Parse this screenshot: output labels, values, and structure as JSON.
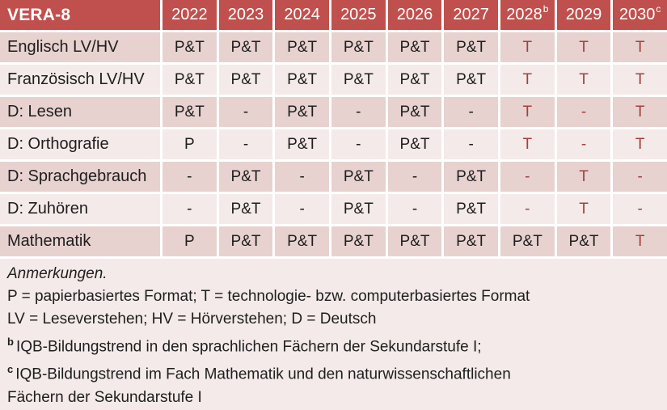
{
  "colors": {
    "header_bg": "#C0504D",
    "header_text": "#FFFFFF",
    "row_dark": "#E7D2D0",
    "row_light": "#F3EAE9",
    "body_text": "#1E1E1E",
    "accent_text": "#A0413E",
    "gap": "#FFFFFF"
  },
  "table": {
    "title": "VERA-8",
    "years": [
      {
        "label": "2022",
        "sup": ""
      },
      {
        "label": "2023",
        "sup": ""
      },
      {
        "label": "2024",
        "sup": ""
      },
      {
        "label": "2025",
        "sup": ""
      },
      {
        "label": "2026",
        "sup": ""
      },
      {
        "label": "2027",
        "sup": ""
      },
      {
        "label": "2028",
        "sup": "b"
      },
      {
        "label": "2029",
        "sup": ""
      },
      {
        "label": "2030",
        "sup": "c"
      }
    ],
    "rows": [
      {
        "label": "Englisch LV/HV",
        "cells": [
          {
            "text": "P&T",
            "red": false
          },
          {
            "text": "P&T",
            "red": false
          },
          {
            "text": "P&T",
            "red": false
          },
          {
            "text": "P&T",
            "red": false
          },
          {
            "text": "P&T",
            "red": false
          },
          {
            "text": "P&T",
            "red": false
          },
          {
            "text": "T",
            "red": true
          },
          {
            "text": "T",
            "red": true
          },
          {
            "text": "T",
            "red": true
          }
        ]
      },
      {
        "label": "Französisch LV/HV",
        "cells": [
          {
            "text": "P&T",
            "red": false
          },
          {
            "text": "P&T",
            "red": false
          },
          {
            "text": "P&T",
            "red": false
          },
          {
            "text": "P&T",
            "red": false
          },
          {
            "text": "P&T",
            "red": false
          },
          {
            "text": "P&T",
            "red": false
          },
          {
            "text": "T",
            "red": true
          },
          {
            "text": "T",
            "red": true
          },
          {
            "text": "T",
            "red": true
          }
        ]
      },
      {
        "label": "D: Lesen",
        "cells": [
          {
            "text": "P&T",
            "red": false
          },
          {
            "text": "-",
            "red": false
          },
          {
            "text": "P&T",
            "red": false
          },
          {
            "text": "-",
            "red": false
          },
          {
            "text": "P&T",
            "red": false
          },
          {
            "text": "-",
            "red": false
          },
          {
            "text": "T",
            "red": true
          },
          {
            "text": "-",
            "red": true
          },
          {
            "text": "T",
            "red": true
          }
        ]
      },
      {
        "label": "D: Orthografie",
        "cells": [
          {
            "text": "P",
            "red": false
          },
          {
            "text": "-",
            "red": false
          },
          {
            "text": "P&T",
            "red": false
          },
          {
            "text": "-",
            "red": false
          },
          {
            "text": "P&T",
            "red": false
          },
          {
            "text": "-",
            "red": false
          },
          {
            "text": "T",
            "red": true
          },
          {
            "text": "-",
            "red": true
          },
          {
            "text": "T",
            "red": true
          }
        ]
      },
      {
        "label": "D: Sprachgebrauch",
        "cells": [
          {
            "text": "-",
            "red": false
          },
          {
            "text": "P&T",
            "red": false
          },
          {
            "text": "-",
            "red": false
          },
          {
            "text": "P&T",
            "red": false
          },
          {
            "text": "-",
            "red": false
          },
          {
            "text": "P&T",
            "red": false
          },
          {
            "text": "-",
            "red": true
          },
          {
            "text": "T",
            "red": true
          },
          {
            "text": "-",
            "red": true
          }
        ]
      },
      {
        "label": "D: Zuhören",
        "cells": [
          {
            "text": "-",
            "red": false
          },
          {
            "text": "P&T",
            "red": false
          },
          {
            "text": "-",
            "red": false
          },
          {
            "text": "P&T",
            "red": false
          },
          {
            "text": "-",
            "red": false
          },
          {
            "text": "P&T",
            "red": false
          },
          {
            "text": "-",
            "red": true
          },
          {
            "text": "T",
            "red": true
          },
          {
            "text": "-",
            "red": true
          }
        ]
      },
      {
        "label": "Mathematik",
        "cells": [
          {
            "text": "P",
            "red": false
          },
          {
            "text": "P&T",
            "red": false
          },
          {
            "text": "P&T",
            "red": false
          },
          {
            "text": "P&T",
            "red": false
          },
          {
            "text": "P&T",
            "red": false
          },
          {
            "text": "P&T",
            "red": false
          },
          {
            "text": "P&T",
            "red": false
          },
          {
            "text": "P&T",
            "red": false
          },
          {
            "text": "T",
            "red": true
          }
        ]
      }
    ]
  },
  "notes": {
    "heading": "Anmerkungen.",
    "line1": "P = papierbasiertes Format; T = technologie- bzw. computerbasiertes Format",
    "line2": "LV = Leseverstehen; HV = Hörverstehen; D = Deutsch",
    "b_sup": "b",
    "b_text": "IQB-Bildungstrend in den sprachlichen Fächern der Sekundarstufe I;",
    "c_sup": "c",
    "c_text": "IQB-Bildungstrend im Fach Mathematik und den naturwissenschaftlichen Fächern der Sekundarstufe I"
  }
}
